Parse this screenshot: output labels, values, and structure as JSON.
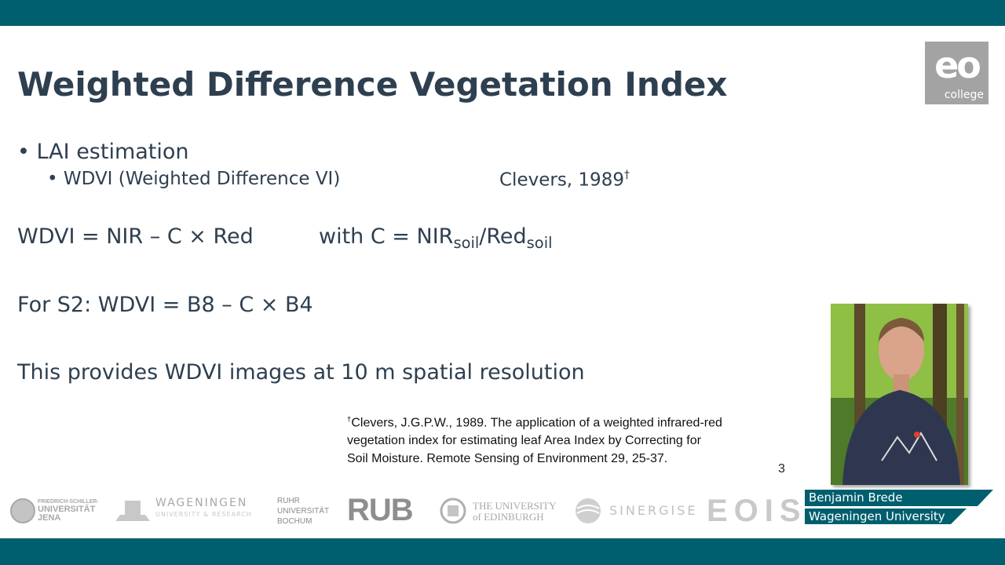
{
  "logo": {
    "mark": "eo",
    "caption": "college"
  },
  "title": "Weighted Difference Vegetation Index",
  "bullets": [
    {
      "text": "LAI estimation",
      "sub": [
        {
          "text": "WDVI (Weighted Difference VI)",
          "citation": "Clevers, 1989",
          "citation_mark": "†"
        }
      ]
    }
  ],
  "formula": {
    "lhs": "WDVI = NIR – C × Red",
    "rhs_start": "with C = NIR",
    "sub1": "soil",
    "mid": "/Red",
    "sub2": "soil"
  },
  "s2_formula": "For S2: WDVI = B8 – C × B4",
  "statement": "This provides WDVI images at 10 m spatial resolution",
  "footnote": {
    "mark": "†",
    "lines": [
      "Clevers, J.G.P.W., 1989. The application of a weighted infrared-red",
      "vegetation index for estimating leaf Area Index by Correcting for",
      "Soil Moisture. Remote Sensing of Environment 29, 25-37."
    ]
  },
  "page_number": 3,
  "speaker": {
    "name": "Benjamin Brede",
    "affiliation": "Wageningen University"
  },
  "partners": [
    {
      "lines": [
        "FRIEDRICH-SCHILLER-",
        "UNIVERSITÄT",
        "JENA"
      ]
    },
    {
      "lines": [
        "WAGENINGEN",
        "UNIVERSITY & RESEARCH"
      ]
    },
    {
      "lines": [
        "RUHR",
        "UNIVERSITÄT",
        "BOCHUM"
      ]
    },
    {
      "lines": [
        "RUB"
      ]
    },
    {
      "lines": [
        "THE UNIVERSITY",
        "of EDINBURGH"
      ]
    },
    {
      "lines": [
        "SINERGISE"
      ]
    },
    {
      "lines": [
        "EOIS"
      ]
    }
  ]
}
